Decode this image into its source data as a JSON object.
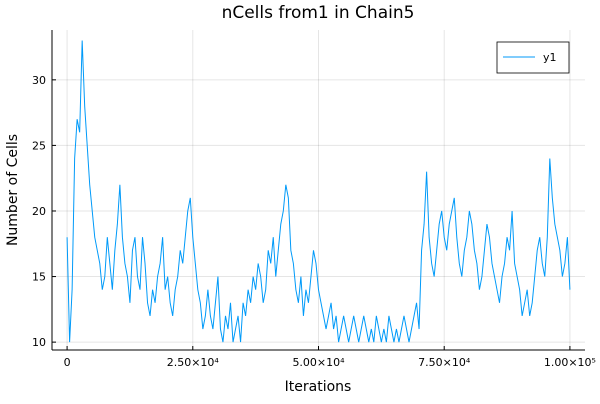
{
  "chart_data": {
    "type": "line",
    "title": "nCells from1 in Chain5",
    "x_label": "Iterations",
    "y_label": "Number of Cells",
    "x": [
      0,
      500,
      1000,
      1500,
      2000,
      2500,
      3000,
      3500,
      4000,
      4500,
      5000,
      5500,
      6000,
      6500,
      7000,
      7500,
      8000,
      8500,
      9000,
      9500,
      10000,
      10500,
      11000,
      11500,
      12000,
      12500,
      13000,
      13500,
      14000,
      14500,
      15000,
      15500,
      16000,
      16500,
      17000,
      17500,
      18000,
      18500,
      19000,
      19500,
      20000,
      20500,
      21000,
      21500,
      22000,
      22500,
      23000,
      23500,
      24000,
      24500,
      25000,
      25500,
      26000,
      26500,
      27000,
      27500,
      28000,
      28500,
      29000,
      29500,
      30000,
      30500,
      31000,
      31500,
      32000,
      32500,
      33000,
      33500,
      34000,
      34500,
      35000,
      35500,
      36000,
      36500,
      37000,
      37500,
      38000,
      38500,
      39000,
      39500,
      40000,
      40500,
      41000,
      41500,
      42000,
      42500,
      43000,
      43500,
      44000,
      44500,
      45000,
      45500,
      46000,
      46500,
      47000,
      47500,
      48000,
      48500,
      49000,
      49500,
      50000,
      50500,
      51000,
      51500,
      52000,
      52500,
      53000,
      53500,
      54000,
      54500,
      55000,
      55500,
      56000,
      56500,
      57000,
      57500,
      58000,
      58500,
      59000,
      59500,
      60000,
      60500,
      61000,
      61500,
      62000,
      62500,
      63000,
      63500,
      64000,
      64500,
      65000,
      65500,
      66000,
      66500,
      67000,
      67500,
      68000,
      68500,
      69000,
      69500,
      70000,
      70500,
      71000,
      71500,
      72000,
      72500,
      73000,
      73500,
      74000,
      74500,
      75000,
      75500,
      76000,
      76500,
      77000,
      77500,
      78000,
      78500,
      79000,
      79500,
      80000,
      80500,
      81000,
      81500,
      82000,
      82500,
      83000,
      83500,
      84000,
      84500,
      85000,
      85500,
      86000,
      86500,
      87000,
      87500,
      88000,
      88500,
      89000,
      89500,
      90000,
      90500,
      91000,
      91500,
      92000,
      92500,
      93000,
      93500,
      94000,
      94500,
      95000,
      95500,
      96000,
      96500,
      97000,
      97500,
      98000,
      98500,
      99000,
      99500,
      100000
    ],
    "series": [
      {
        "name": "y1",
        "color": "#009af9",
        "values": [
          18,
          10,
          14,
          24,
          27,
          26,
          33,
          28,
          25,
          22,
          20,
          18,
          17,
          16,
          14,
          15,
          18,
          16,
          14,
          17,
          19,
          22,
          18,
          16,
          15,
          13,
          17,
          18,
          15,
          14,
          18,
          16,
          13,
          12,
          14,
          13,
          15,
          16,
          18,
          14,
          15,
          13,
          12,
          14,
          15,
          17,
          16,
          18,
          20,
          21,
          18,
          16,
          14,
          13,
          11,
          12,
          14,
          12,
          11,
          13,
          15,
          11,
          10,
          12,
          11,
          13,
          10,
          11,
          12,
          10,
          13,
          12,
          14,
          13,
          15,
          14,
          16,
          15,
          13,
          14,
          17,
          16,
          18,
          15,
          17,
          19,
          20,
          22,
          21,
          17,
          16,
          14,
          13,
          15,
          12,
          14,
          13,
          15,
          17,
          16,
          14,
          13,
          12,
          11,
          12,
          13,
          11,
          12,
          10,
          11,
          12,
          11,
          10,
          11,
          12,
          11,
          10,
          11,
          12,
          11,
          10,
          11,
          10,
          12,
          11,
          10,
          11,
          10,
          12,
          11,
          10,
          11,
          10,
          11,
          12,
          11,
          10,
          11,
          12,
          13,
          11,
          17,
          19,
          23,
          18,
          16,
          15,
          17,
          19,
          20,
          18,
          17,
          19,
          20,
          21,
          18,
          16,
          15,
          17,
          18,
          20,
          19,
          17,
          16,
          14,
          15,
          17,
          19,
          18,
          16,
          15,
          14,
          13,
          15,
          16,
          18,
          17,
          20,
          16,
          15,
          14,
          12,
          13,
          14,
          12,
          13,
          15,
          17,
          18,
          16,
          15,
          18,
          24,
          21,
          19,
          18,
          17,
          15,
          16,
          18,
          14
        ]
      }
    ],
    "xlim": [
      -3000,
      103000
    ],
    "ylim": [
      9.4,
      33.8
    ],
    "xticks": [
      0,
      {
        "value": 25000,
        "label": "2.50×10⁴"
      },
      {
        "value": 50000,
        "label": "5.00×10⁴"
      },
      {
        "value": 75000,
        "label": "7.50×10⁴"
      },
      {
        "value": 100000,
        "label": "1.00×10⁵"
      }
    ],
    "yticks": [
      10,
      15,
      20,
      25,
      30
    ],
    "grid": true,
    "legend": "topright"
  }
}
